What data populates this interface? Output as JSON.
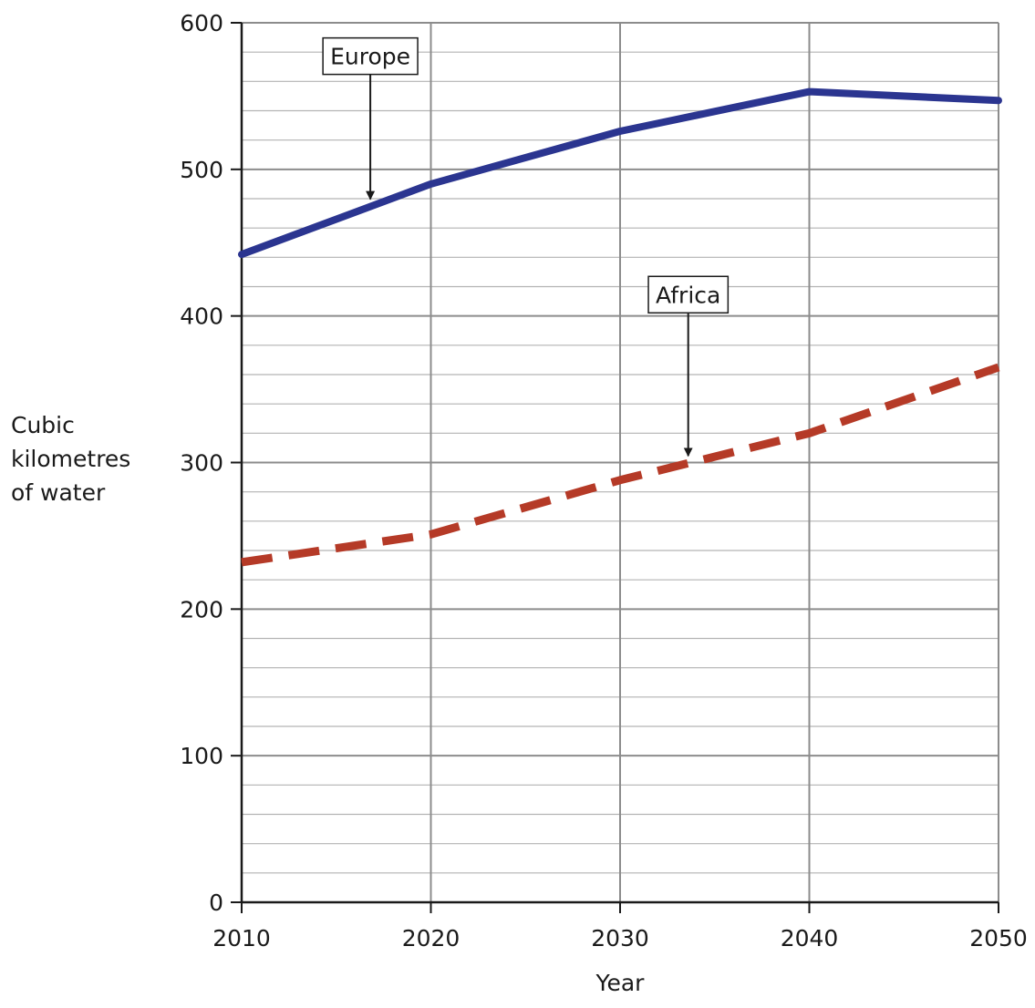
{
  "chart_data": {
    "type": "line",
    "title": "",
    "xlabel": "Year",
    "ylabel_lines": [
      "Cubic",
      "kilometres",
      "of water"
    ],
    "xlim": [
      2010,
      2050
    ],
    "ylim": [
      0,
      600
    ],
    "x_ticks": [
      2010,
      2020,
      2030,
      2040,
      2050
    ],
    "y_ticks": [
      0,
      100,
      200,
      300,
      400,
      500,
      600
    ],
    "grid": {
      "major_x": true,
      "minor_y_step": 20
    },
    "series": [
      {
        "name": "Europe",
        "color": "#2b3590",
        "style": "solid",
        "x": [
          2010,
          2020,
          2030,
          2040,
          2050
        ],
        "y": [
          442,
          490,
          526,
          553,
          547
        ],
        "annotation_x": 2016.8
      },
      {
        "name": "Africa",
        "color": "#b53a27",
        "style": "dashed",
        "x": [
          2010,
          2020,
          2030,
          2040,
          2050
        ],
        "y": [
          232,
          251,
          288,
          320,
          365
        ],
        "annotation_x": 2033.6
      }
    ]
  }
}
